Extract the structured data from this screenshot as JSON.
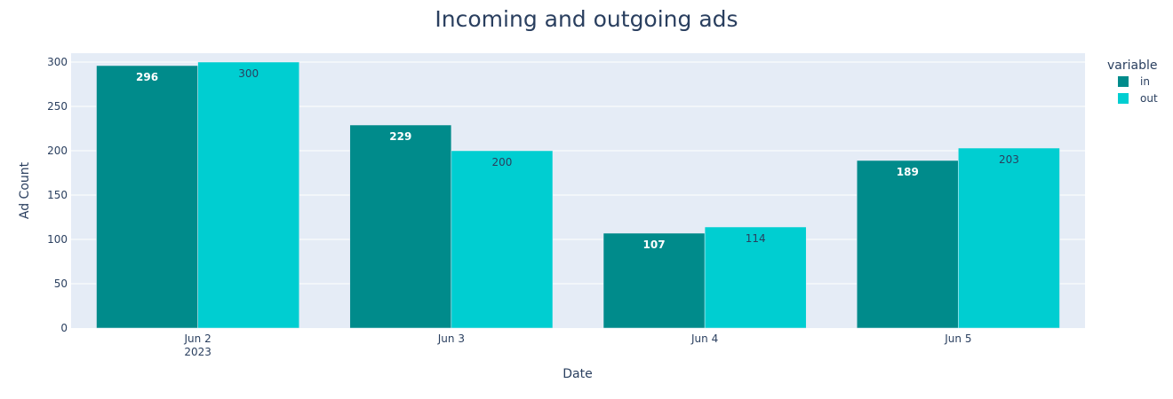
{
  "chart_data": {
    "type": "bar",
    "title": "Incoming and outgoing ads",
    "xlabel": "Date",
    "ylabel": "Ad Count",
    "categories": [
      "Jun 2",
      "Jun 3",
      "Jun 4",
      "Jun 5"
    ],
    "category_sublabels": [
      "2023",
      "",
      "",
      ""
    ],
    "series": [
      {
        "name": "in",
        "values": [
          296,
          229,
          107,
          189
        ],
        "color": "#008b8b"
      },
      {
        "name": "out",
        "values": [
          300,
          200,
          114,
          203
        ],
        "color": "#00ced1"
      }
    ],
    "ylim": [
      0,
      310
    ],
    "yticks": [
      0,
      50,
      100,
      150,
      200,
      250,
      300
    ],
    "legend": {
      "title": "variable",
      "placement": "right"
    },
    "grid": true,
    "plot_background": "#e5ecf6"
  }
}
